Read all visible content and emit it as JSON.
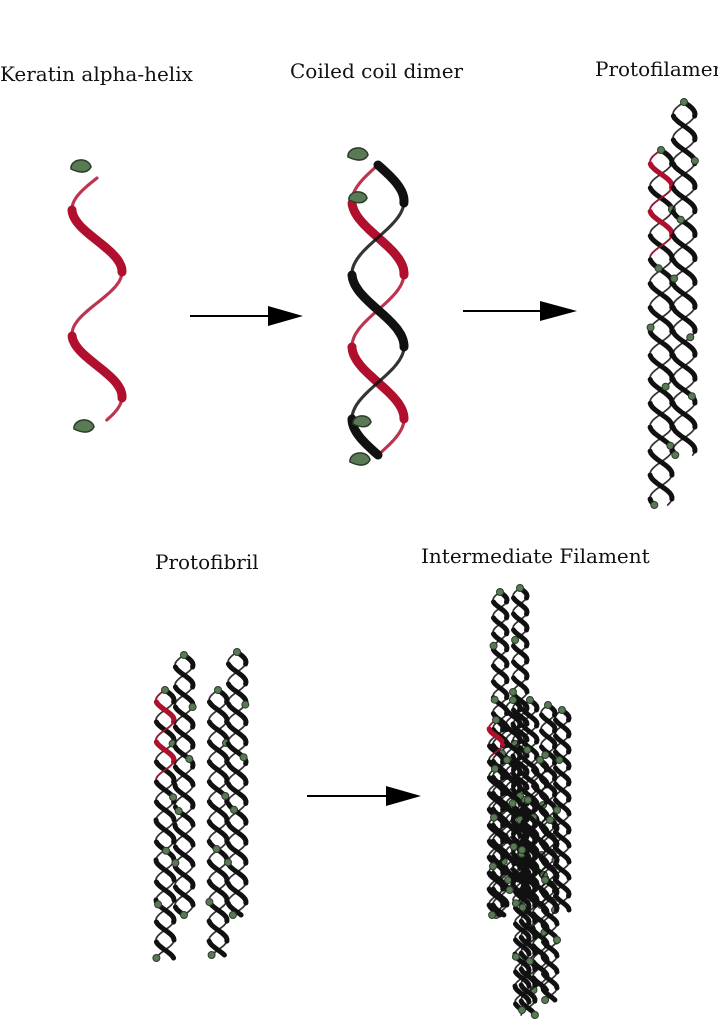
{
  "stages": [
    {
      "id": "alpha-helix",
      "label": "Keratin alpha-helix"
    },
    {
      "id": "dimer",
      "label": "Coiled coil dimer"
    },
    {
      "id": "protofilament",
      "label": "Protofilament"
    },
    {
      "id": "protofibril",
      "label": "Protofibril"
    },
    {
      "id": "intermediate-filament",
      "label": "Intermediate Filament"
    }
  ],
  "colors": {
    "helix_red": "#b0102e",
    "helix_dark": "#111111",
    "cap_green": "#5a7a55",
    "arrow": "#000000"
  }
}
